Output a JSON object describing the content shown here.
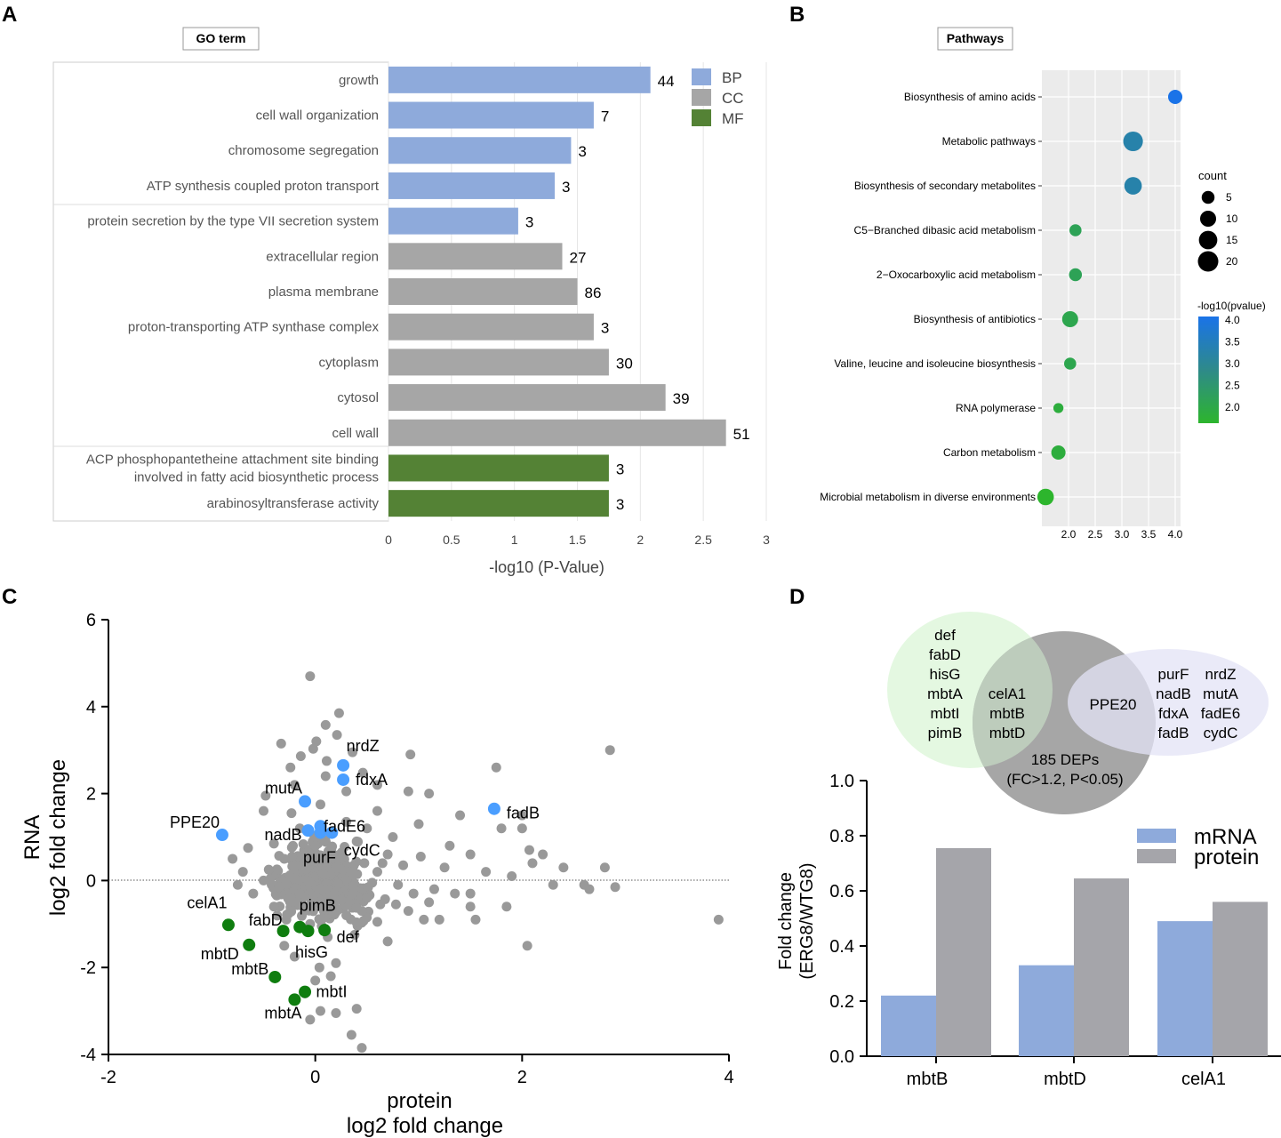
{
  "panels": {
    "a": "A",
    "b": "B",
    "c": "C",
    "d": "D"
  },
  "chart_data": [
    {
      "panel": "A",
      "type": "bar",
      "orientation": "horizontal",
      "box_label": "GO term",
      "xlabel": "-log10 (P-Value)",
      "xlim": [
        0,
        3
      ],
      "xticks": [
        "0",
        "0.5",
        "1",
        "1.5",
        "2",
        "2.5",
        "3"
      ],
      "legend": [
        {
          "name": "BP",
          "color": "#8eaadb"
        },
        {
          "name": "CC",
          "color": "#a6a6a6"
        },
        {
          "name": "MF",
          "color": "#548235"
        }
      ],
      "categories": [
        {
          "label": [
            "growth"
          ],
          "value": 2.08,
          "count": "44",
          "group": "BP"
        },
        {
          "label": [
            "cell wall organization"
          ],
          "value": 1.63,
          "count": "7",
          "group": "BP"
        },
        {
          "label": [
            "chromosome segregation"
          ],
          "value": 1.45,
          "count": "3",
          "group": "BP"
        },
        {
          "label": [
            "ATP synthesis coupled proton transport"
          ],
          "value": 1.32,
          "count": "3",
          "group": "BP"
        },
        {
          "label": [
            "protein secretion by the type VII secretion system"
          ],
          "value": 1.03,
          "count": "3",
          "group": "BP"
        },
        {
          "label": [
            "extracellular region"
          ],
          "value": 1.38,
          "count": "27",
          "group": "CC"
        },
        {
          "label": [
            "plasma membrane"
          ],
          "value": 1.5,
          "count": "86",
          "group": "CC"
        },
        {
          "label": [
            "proton-transporting ATP synthase complex"
          ],
          "value": 1.63,
          "count": "3",
          "group": "CC"
        },
        {
          "label": [
            "cytoplasm"
          ],
          "value": 1.75,
          "count": "30",
          "group": "CC"
        },
        {
          "label": [
            "cytosol"
          ],
          "value": 2.2,
          "count": "39",
          "group": "CC"
        },
        {
          "label": [
            "cell wall"
          ],
          "value": 2.68,
          "count": "51",
          "group": "CC"
        },
        {
          "label": [
            "ACP phosphopantetheine attachment site binding",
            "involved in fatty acid biosynthetic process"
          ],
          "value": 1.75,
          "count": "3",
          "group": "MF"
        },
        {
          "label": [
            "arabinosyltransferase activity"
          ],
          "value": 1.75,
          "count": "3",
          "group": "MF"
        }
      ]
    },
    {
      "panel": "B",
      "type": "scatter",
      "subtype": "dot-plot",
      "box_label": "Pathways",
      "xlim": [
        1.5,
        4.1
      ],
      "xticks": [
        {
          "v": 2.0,
          "t": "2.0"
        },
        {
          "v": 2.5,
          "t": "2.5"
        },
        {
          "v": 3.0,
          "t": "3.0"
        },
        {
          "v": 3.5,
          "t": "3.5"
        },
        {
          "v": 4.0,
          "t": "4.0"
        }
      ],
      "size_legend": {
        "title": "count",
        "values": [
          5,
          10,
          15,
          20
        ],
        "labels": [
          "5",
          "10",
          "15",
          "20"
        ]
      },
      "color_legend": {
        "title": "-log10(pvalue)",
        "ticks": [
          "4.0",
          "3.5",
          "3.0",
          "2.5",
          "2.0"
        ],
        "low_color": "#2db52d",
        "high_color": "#1a73e8"
      },
      "points": [
        {
          "label": "Biosynthesis of amino acids",
          "x": 4.0,
          "count": 7
        },
        {
          "label": "Metabolic pathways",
          "x": 3.21,
          "count": 18
        },
        {
          "label": "Biosynthesis of secondary metabolites",
          "x": 3.21,
          "count": 13
        },
        {
          "label": "C5−Branched dibasic acid metabolism",
          "x": 2.13,
          "count": 4
        },
        {
          "label": "2−Oxocarboxylic acid metabolism",
          "x": 2.13,
          "count": 5
        },
        {
          "label": "Biosynthesis of antibiotics",
          "x": 2.03,
          "count": 10
        },
        {
          "label": "Valine, leucine and isoleucine biosynthesis",
          "x": 2.03,
          "count": 4
        },
        {
          "label": "RNA polymerase",
          "x": 1.81,
          "count": 2
        },
        {
          "label": "Carbon metabolism",
          "x": 1.81,
          "count": 7
        },
        {
          "label": "Microbial metabolism in diverse environments",
          "x": 1.57,
          "count": 11
        }
      ]
    },
    {
      "panel": "C",
      "type": "scatter",
      "xlabel": [
        "protein",
        "log2 fold change"
      ],
      "ylabel": [
        "RNA",
        "log2 fold change"
      ],
      "xlim": [
        -2,
        4
      ],
      "ylim": [
        -4,
        6
      ],
      "xticks": [
        "-2",
        "0",
        "2",
        "4"
      ],
      "yticks": [
        "-4",
        "-2",
        "0",
        "2",
        "4",
        "6"
      ],
      "background_color": "#999999",
      "background_points": [
        [
          -0.05,
          4.7
        ],
        [
          0.23,
          3.85
        ],
        [
          0.1,
          3.58
        ],
        [
          0.21,
          3.35
        ],
        [
          -0.33,
          3.15
        ],
        [
          0.01,
          3.2
        ],
        [
          -0.02,
          3.03
        ],
        [
          -0.14,
          2.86
        ],
        [
          0.36,
          2.95
        ],
        [
          -0.24,
          2.6
        ],
        [
          0.11,
          2.75
        ],
        [
          0.46,
          2.48
        ],
        [
          0.92,
          2.9
        ],
        [
          0.6,
          2.2
        ],
        [
          0.9,
          2.05
        ],
        [
          1.1,
          2.0
        ],
        [
          1.75,
          2.6
        ],
        [
          2.85,
          3.0
        ],
        [
          1.4,
          1.5
        ],
        [
          1.8,
          1.2
        ],
        [
          2.0,
          1.5
        ],
        [
          2.07,
          0.7
        ],
        [
          2.0,
          1.2
        ],
        [
          -0.8,
          0.5
        ],
        [
          -0.7,
          0.2
        ],
        [
          -0.5,
          0.0
        ],
        [
          -0.5,
          1.6
        ],
        [
          -0.23,
          1.55
        ],
        [
          -0.48,
          1.95
        ],
        [
          0.6,
          1.6
        ],
        [
          1.0,
          1.3
        ],
        [
          1.3,
          0.8
        ],
        [
          1.5,
          0.6
        ],
        [
          2.1,
          0.4
        ],
        [
          2.2,
          0.6
        ],
        [
          2.4,
          0.3
        ],
        [
          2.8,
          0.3
        ],
        [
          1.9,
          0.1
        ],
        [
          2.3,
          -0.1
        ],
        [
          2.6,
          -0.1
        ],
        [
          2.65,
          -0.2
        ],
        [
          2.9,
          -0.15
        ],
        [
          3.9,
          -0.9
        ],
        [
          2.05,
          -1.5
        ],
        [
          1.5,
          -0.6
        ],
        [
          1.55,
          -0.9
        ],
        [
          1.85,
          -0.6
        ],
        [
          1.5,
          -0.3
        ],
        [
          1.1,
          -0.5
        ],
        [
          1.05,
          -0.9
        ],
        [
          1.2,
          -0.9
        ],
        [
          0.7,
          -1.4
        ],
        [
          0.9,
          -0.7
        ],
        [
          -0.3,
          -1.5
        ],
        [
          -0.2,
          -1.75
        ],
        [
          0.2,
          -1.9
        ],
        [
          0.15,
          -2.2
        ],
        [
          0.0,
          -2.3
        ],
        [
          0.05,
          -3.0
        ],
        [
          0.2,
          -3.05
        ],
        [
          0.4,
          -2.95
        ],
        [
          0.35,
          -3.55
        ],
        [
          0.45,
          -3.85
        ],
        [
          -0.05,
          -3.2
        ],
        [
          0.04,
          -2.0
        ],
        [
          -0.1,
          -2.6
        ],
        [
          0.6,
          0.2
        ],
        [
          0.7,
          0.6
        ],
        [
          0.8,
          -0.1
        ],
        [
          0.5,
          -0.4
        ],
        [
          -0.6,
          -0.3
        ],
        [
          -0.4,
          -0.6
        ],
        [
          0.3,
          -0.8
        ],
        [
          -0.15,
          -0.3
        ],
        [
          0.0,
          0.8
        ],
        [
          0.2,
          0.3
        ],
        [
          -0.3,
          0.5
        ],
        [
          0.4,
          0.9
        ],
        [
          0.1,
          -0.2
        ],
        [
          -0.05,
          0.45
        ],
        [
          0.35,
          0.2
        ],
        [
          0.55,
          -0.05
        ],
        [
          -0.45,
          0.25
        ],
        [
          0.25,
          -0.45
        ],
        [
          -0.2,
          0.05
        ],
        [
          0.15,
          0.65
        ],
        [
          0.65,
          0.4
        ],
        [
          -0.1,
          -0.6
        ],
        [
          0.45,
          -0.7
        ],
        [
          -0.35,
          -0.15
        ],
        [
          0.85,
          0.35
        ],
        [
          0.95,
          -0.3
        ],
        [
          0.3,
          1.35
        ],
        [
          -0.15,
          1.2
        ],
        [
          0.05,
          1.75
        ],
        [
          0.5,
          1.2
        ],
        [
          0.75,
          1.0
        ],
        [
          -0.65,
          0.75
        ],
        [
          1.25,
          0.3
        ],
        [
          1.15,
          -0.2
        ],
        [
          -0.75,
          -0.1
        ],
        [
          0.6,
          -0.95
        ],
        [
          -0.05,
          -1.0
        ],
        [
          0.12,
          -1.3
        ],
        [
          0.38,
          -1.25
        ],
        [
          -0.28,
          -0.9
        ],
        [
          1.35,
          -0.3
        ],
        [
          1.65,
          0.2
        ],
        [
          0.1,
          2.4
        ],
        [
          -0.2,
          2.2
        ],
        [
          0.3,
          2.05
        ],
        [
          -0.4,
          0.85
        ],
        [
          0.78,
          -0.55
        ],
        [
          1.02,
          0.55
        ]
      ],
      "groups": [
        {
          "name": "up",
          "color": "#4a9eff",
          "points": [
            {
              "label": "nrdZ",
              "x": 0.27,
              "y": 2.65
            },
            {
              "label": "fdxA",
              "x": 0.27,
              "y": 2.32
            },
            {
              "label": "fadB",
              "x": 1.73,
              "y": 1.65
            },
            {
              "label": "mutA",
              "x": -0.1,
              "y": 1.82
            },
            {
              "label": "PPE20",
              "x": -0.9,
              "y": 1.05
            },
            {
              "label": "fadE6",
              "x": 0.05,
              "y": 1.25
            },
            {
              "label": "nadB",
              "x": -0.07,
              "y": 1.15
            },
            {
              "label": "cydC",
              "x": 0.16,
              "y": 1.1
            },
            {
              "label": "purF",
              "x": 0.05,
              "y": 1.1
            }
          ]
        },
        {
          "name": "down",
          "color": "#0f7d0f",
          "points": [
            {
              "label": "celA1",
              "x": -0.84,
              "y": -1.02
            },
            {
              "label": "fabD",
              "x": -0.31,
              "y": -1.16
            },
            {
              "label": "pimB",
              "x": -0.15,
              "y": -1.07
            },
            {
              "label": "hisG",
              "x": -0.07,
              "y": -1.16
            },
            {
              "label": "def",
              "x": 0.09,
              "y": -1.14
            },
            {
              "label": "mbtD",
              "x": -0.64,
              "y": -1.48
            },
            {
              "label": "mbtB",
              "x": -0.39,
              "y": -2.22
            },
            {
              "label": "mbtI",
              "x": -0.1,
              "y": -2.56
            },
            {
              "label": "mbtA",
              "x": -0.2,
              "y": -2.74
            }
          ]
        }
      ]
    },
    {
      "panel": "D",
      "type": "bar",
      "ylabel": [
        "Fold change",
        "(ERG8/WTG8)"
      ],
      "ylim": [
        0,
        1
      ],
      "yticks": [
        "0.0",
        "0.2",
        "0.4",
        "0.6",
        "0.8",
        "1.0"
      ],
      "categories": [
        "mbtB",
        "mbtD",
        "celA1"
      ],
      "series": [
        {
          "name": "mRNA",
          "color": "#8eaadb",
          "values": [
            0.22,
            0.33,
            0.49
          ]
        },
        {
          "name": "protein",
          "color": "#a5a5aa",
          "values": [
            0.755,
            0.645,
            0.56
          ]
        }
      ],
      "venn": {
        "left_genes": [
          "def",
          "fabD",
          "hisG",
          "mbtA",
          "mbtI",
          "pimB"
        ],
        "overlap_left_genes": [
          "celA1",
          "mbtB",
          "mbtD"
        ],
        "overlap_right_genes": [
          "PPE20"
        ],
        "right_genes_col1": [
          "purF",
          "nadB",
          "fdxA",
          "fadB"
        ],
        "right_genes_col2": [
          "nrdZ",
          "mutA",
          "fadE6",
          "cydC"
        ],
        "center_label": [
          "185 DEPs",
          "(FC>1.2, P<0.05)"
        ],
        "left_color": "#e3f8df",
        "center_color": "#a6a6a6",
        "right_color": "#e3e3f6"
      }
    }
  ]
}
